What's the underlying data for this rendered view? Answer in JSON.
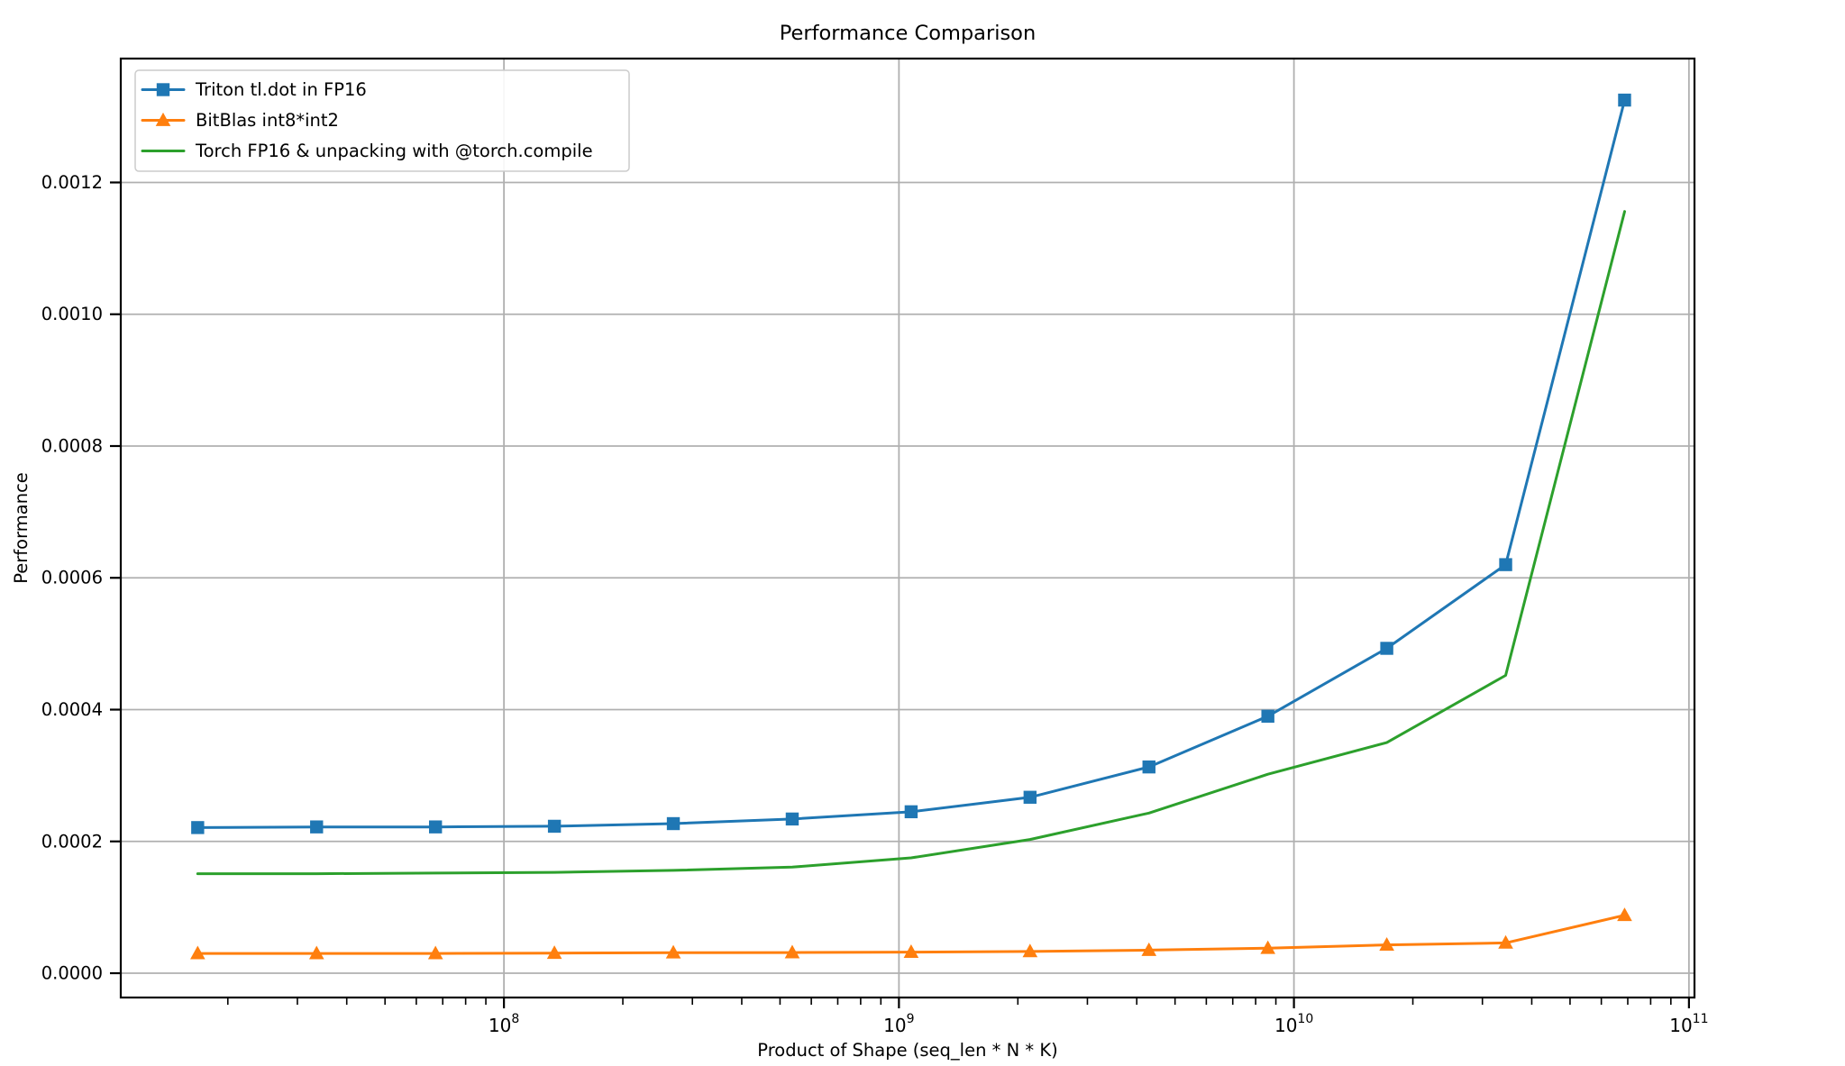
{
  "figure": {
    "background": "#ffffff"
  },
  "chart_data": {
    "type": "line",
    "title": "Performance Comparison",
    "xlabel": "Product of Shape (seq_len * N * K)",
    "ylabel": "Performance",
    "x_scale": "log",
    "y_scale": "linear",
    "grid": true,
    "legend_position": "upper left",
    "xlim_log10": [
      7.03,
      11.014
    ],
    "ylim": [
      -3.69e-05,
      0.001388
    ],
    "x_major_ticks": [
      {
        "value": 100000000,
        "mantissa": "10",
        "exp": "8"
      },
      {
        "value": 1000000000,
        "mantissa": "10",
        "exp": "9"
      },
      {
        "value": 10000000000,
        "mantissa": "10",
        "exp": "10"
      },
      {
        "value": 100000000000,
        "mantissa": "10",
        "exp": "11"
      }
    ],
    "x_minor_multiples": [
      2,
      3,
      4,
      5,
      6,
      7,
      8,
      9
    ],
    "x_minor_decades": [
      7,
      8,
      9,
      10
    ],
    "y_major_ticks": [
      {
        "value": 0.0,
        "label": "0.0000"
      },
      {
        "value": 0.0002,
        "label": "0.0002"
      },
      {
        "value": 0.0004,
        "label": "0.0004"
      },
      {
        "value": 0.0006,
        "label": "0.0006"
      },
      {
        "value": 0.0008,
        "label": "0.0008"
      },
      {
        "value": 0.001,
        "label": "0.0010"
      },
      {
        "value": 0.0012,
        "label": "0.0012"
      }
    ],
    "x": [
      16777216,
      33554432,
      67108864,
      134217728,
      268435456,
      536870912,
      1073741824,
      2147483648,
      4294967296,
      8589934592,
      17179869184,
      34359738368,
      68719476736
    ],
    "series": [
      {
        "name": "Triton tl.dot in FP16",
        "color": "#1f77b4",
        "marker": "square",
        "values": [
          0.000221,
          0.000222,
          0.000222,
          0.000223,
          0.000227,
          0.000234,
          0.000245,
          0.000267,
          0.000313,
          0.00039,
          0.000493,
          0.00062,
          0.001325
        ]
      },
      {
        "name": "BitBlas int8*int2",
        "color": "#ff7f0e",
        "marker": "triangle-up",
        "values": [
          3e-05,
          3e-05,
          3e-05,
          3.05e-05,
          3.12e-05,
          3.14e-05,
          3.2e-05,
          3.3e-05,
          3.5e-05,
          3.8e-05,
          4.3e-05,
          4.6e-05,
          8.8e-05
        ]
      },
      {
        "name": "Torch FP16 & unpacking with @torch.compile",
        "color": "#2ca02c",
        "marker": "none",
        "values": [
          0.000151,
          0.000151,
          0.000152,
          0.000153,
          0.000156,
          0.000161,
          0.000175,
          0.000203,
          0.000243,
          0.000302,
          0.00035,
          0.000452,
          0.001156
        ]
      }
    ],
    "style": {
      "grid_color": "#b0b0b0",
      "spine_color": "#000000",
      "tick_color": "#000000",
      "legend_border_color": "#cccccc",
      "legend_background": "rgba(255,255,255,0.9)"
    }
  }
}
